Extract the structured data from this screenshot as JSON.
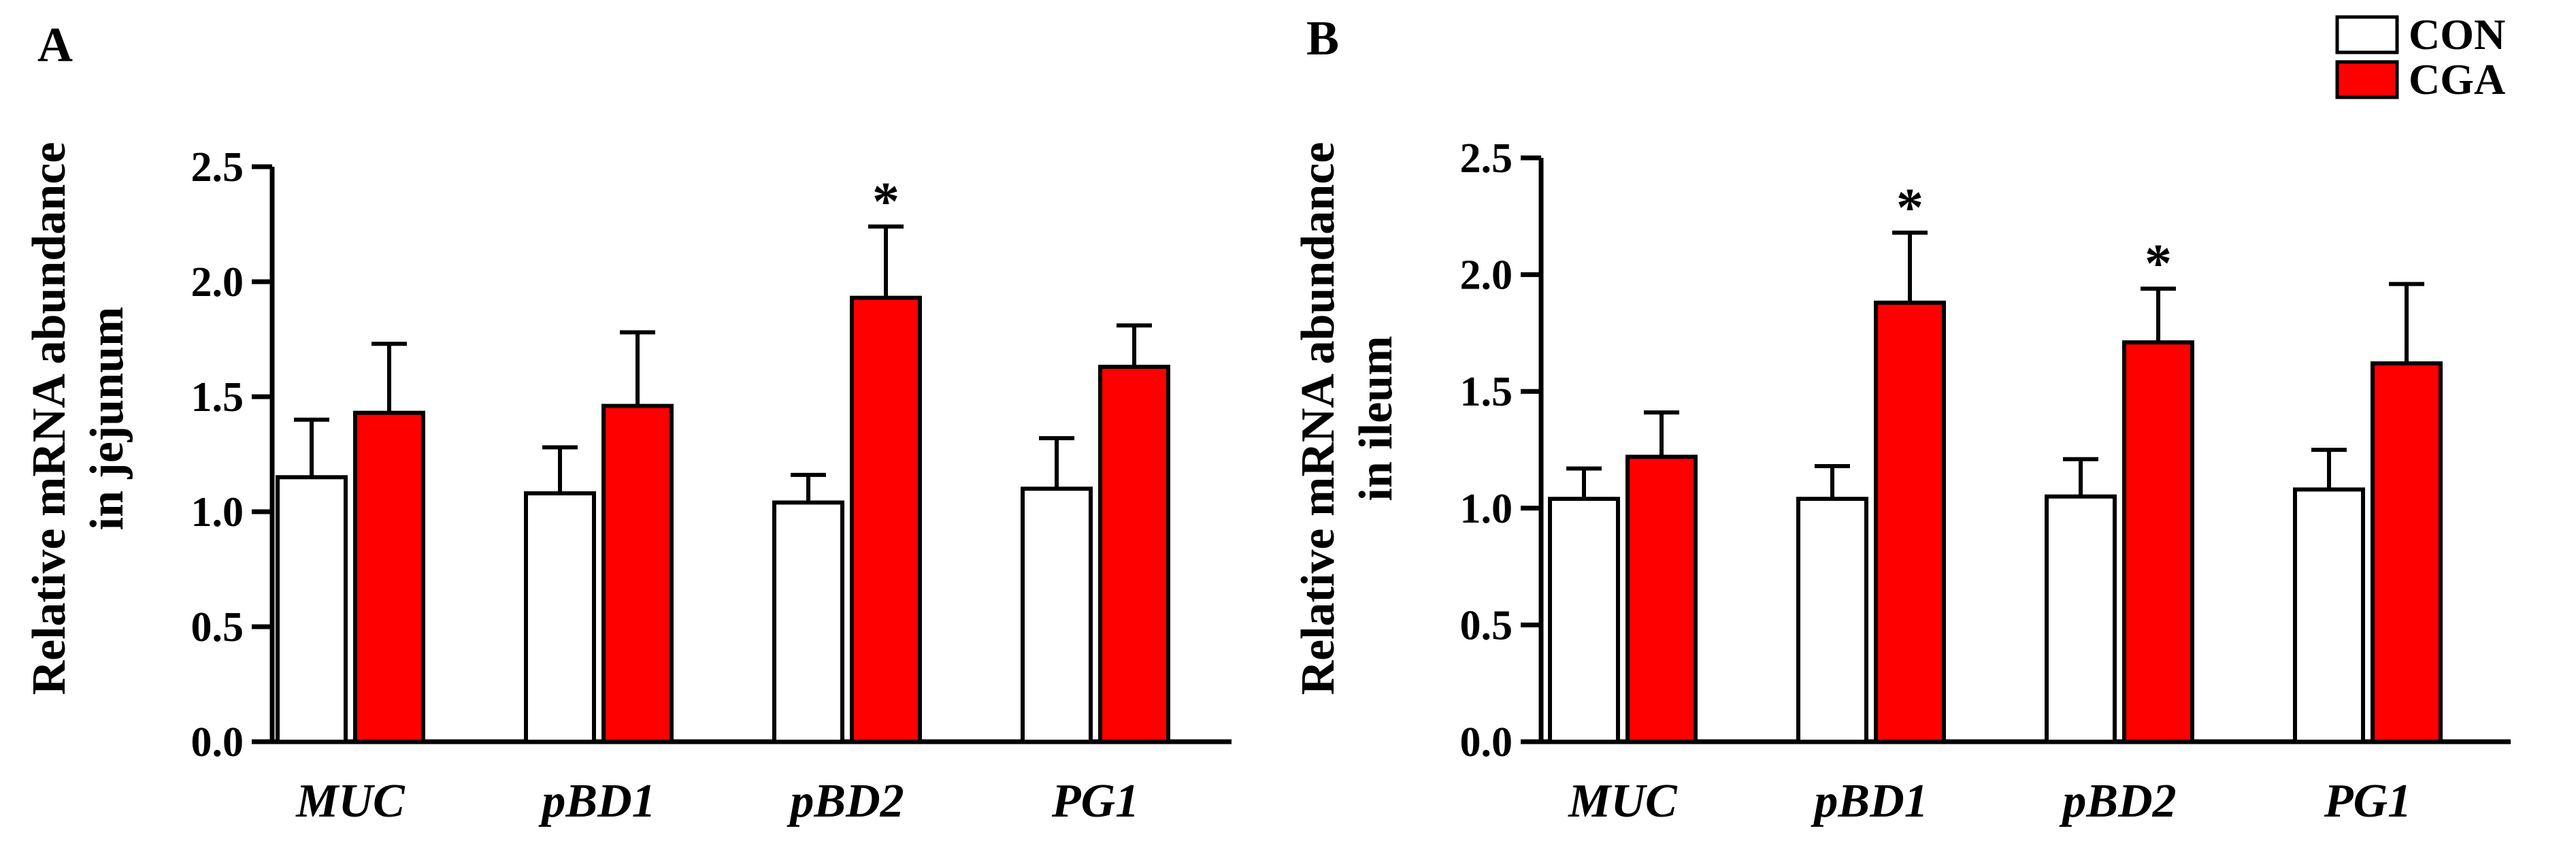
{
  "legend": {
    "items": [
      {
        "label": "CON",
        "color": "#ffffff"
      },
      {
        "label": "CGA",
        "color": "#ff0000"
      }
    ]
  },
  "colors": {
    "con": "#ffffff",
    "cga": "#ff0000",
    "stroke": "#000000"
  },
  "chart_data": [
    {
      "type": "bar",
      "panel": "A",
      "ylabel": [
        "Relative mRNA abundance",
        "in jejunum"
      ],
      "ylim": [
        0,
        2.5
      ],
      "yticks": [
        "0.0",
        "0.5",
        "1.0",
        "1.5",
        "2.0",
        "2.5"
      ],
      "categories": [
        "MUC",
        "pBD1",
        "pBD2",
        "PG1"
      ],
      "series": [
        {
          "name": "CON",
          "values": [
            1.15,
            1.08,
            1.04,
            1.1
          ],
          "errors": [
            0.25,
            0.2,
            0.12,
            0.22
          ],
          "significance": [
            "",
            "",
            "",
            ""
          ]
        },
        {
          "name": "CGA",
          "values": [
            1.43,
            1.46,
            1.93,
            1.63
          ],
          "errors": [
            0.3,
            0.32,
            0.31,
            0.18
          ],
          "significance": [
            "",
            "",
            "*",
            ""
          ]
        }
      ]
    },
    {
      "type": "bar",
      "panel": "B",
      "ylabel": [
        "Relative mRNA abundance",
        "in ileum"
      ],
      "ylim": [
        0,
        2.5
      ],
      "yticks": [
        "0.0",
        "0.5",
        "1.0",
        "1.5",
        "2.0",
        "2.5"
      ],
      "categories": [
        "MUC",
        "pBD1",
        "pBD2",
        "PG1"
      ],
      "series": [
        {
          "name": "CON",
          "values": [
            1.04,
            1.04,
            1.05,
            1.08
          ],
          "errors": [
            0.13,
            0.14,
            0.16,
            0.17
          ],
          "significance": [
            "",
            "",
            "",
            ""
          ]
        },
        {
          "name": "CGA",
          "values": [
            1.22,
            1.88,
            1.71,
            1.62
          ],
          "errors": [
            0.19,
            0.3,
            0.23,
            0.34
          ],
          "significance": [
            "",
            "*",
            "*",
            ""
          ]
        }
      ]
    }
  ]
}
